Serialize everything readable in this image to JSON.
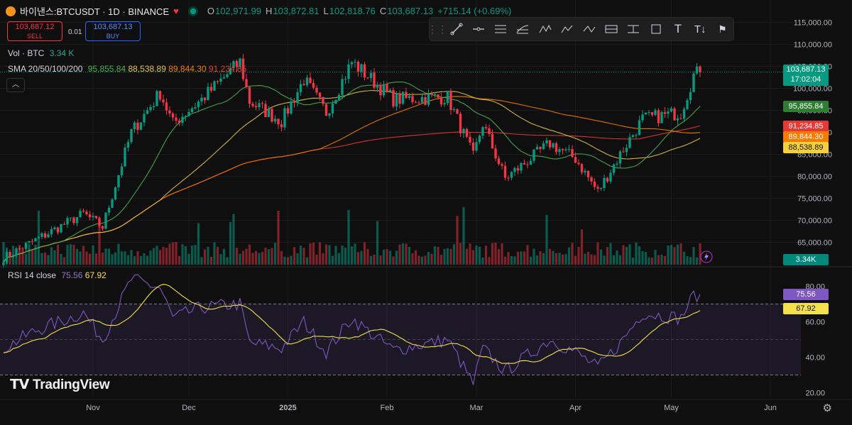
{
  "header": {
    "symbol": "바이낸스:BTCUSDT · 1D · BINANCE",
    "open_label": "O",
    "open": "102,971.99",
    "high_label": "H",
    "high": "103,872.81",
    "low_label": "L",
    "low": "102,818.76",
    "close_label": "C",
    "close": "103,687.13",
    "change": "+715.14 (+0.69%)"
  },
  "trade": {
    "sell_price": "103,687.12",
    "sell_label": "SELL",
    "spread": "0.01",
    "buy_price": "103,687.13",
    "buy_label": "BUY"
  },
  "indicators": {
    "vol_label": "Vol · BTC",
    "vol_value": "3.34 K",
    "sma_label": "SMA 20/50/100/200",
    "sma20": "95,855.84",
    "sma50": "88,538.89",
    "sma100": "89,844.30",
    "sma200": "91,234.85",
    "rsi_label": "RSI 14 close",
    "rsi_value": "75.56",
    "rsi_ma": "67.92"
  },
  "tags": {
    "price": "103,687.13",
    "countdown": "17:02:04",
    "sma20": "95,855.84",
    "sma200": "91,234.85",
    "sma100": "89,844.30",
    "sma50": "88,538.89",
    "volume": "3.34K",
    "rsi": "75.56",
    "rsi_ma": "67.92"
  },
  "brand": "TradingView",
  "colors": {
    "up": "#089981",
    "down": "#f23645",
    "sma20": "#4caf50",
    "sma50": "#e6c34d",
    "sma100": "#f57c00",
    "sma200": "#e53935",
    "rsi": "#7e57c2",
    "rsi_ma": "#f4e04d"
  },
  "chart_data": [
    {
      "type": "candlestick",
      "title": "",
      "y_ticks": [
        "115,000.00",
        "110,000.00",
        "105,000.00",
        "100,000.00",
        "95,000.00",
        "90,000.00",
        "85,000.00",
        "80,000.00",
        "75,000.00",
        "70,000.00",
        "65,000.00"
      ],
      "x_ticks": [
        "Nov",
        "Dec",
        "2025",
        "Feb",
        "Mar",
        "Apr",
        "May",
        "Jun"
      ],
      "ylim": [
        61000,
        117500
      ],
      "anchors": [
        {
          "date": "2024-10-04",
          "close": 61500
        },
        {
          "date": "2024-10-14",
          "close": 65500
        },
        {
          "date": "2024-10-29",
          "close": 71500
        },
        {
          "date": "2024-11-04",
          "close": 68500
        },
        {
          "date": "2024-11-13",
          "close": 90000
        },
        {
          "date": "2024-11-22",
          "close": 99000
        },
        {
          "date": "2024-11-26",
          "close": 92000
        },
        {
          "date": "2024-12-05",
          "close": 97500
        },
        {
          "date": "2024-12-17",
          "close": 106000
        },
        {
          "date": "2024-12-20",
          "close": 97000
        },
        {
          "date": "2024-12-30",
          "close": 92500
        },
        {
          "date": "2025-01-06",
          "close": 102000
        },
        {
          "date": "2025-01-13",
          "close": 94500
        },
        {
          "date": "2025-01-21",
          "close": 106000
        },
        {
          "date": "2025-01-28",
          "close": 101500
        },
        {
          "date": "2025-02-03",
          "close": 97500
        },
        {
          "date": "2025-02-20",
          "close": 98000
        },
        {
          "date": "2025-02-28",
          "close": 84500
        },
        {
          "date": "2025-03-03",
          "close": 92000
        },
        {
          "date": "2025-03-10",
          "close": 79500
        },
        {
          "date": "2025-03-24",
          "close": 87500
        },
        {
          "date": "2025-04-01",
          "close": 84000
        },
        {
          "date": "2025-04-08",
          "close": 76500
        },
        {
          "date": "2025-04-15",
          "close": 85000
        },
        {
          "date": "2025-04-22",
          "close": 93000
        },
        {
          "date": "2025-05-04",
          "close": 94500
        },
        {
          "date": "2025-05-08",
          "close": 103000
        },
        {
          "date": "2025-05-10",
          "close": 103687
        }
      ],
      "sma_last": {
        "sma20": 95855.84,
        "sma50": 88538.89,
        "sma100": 89844.3,
        "sma200": 91234.85
      }
    },
    {
      "type": "bar",
      "title": "Vol · BTC",
      "last_value": "3.34K"
    },
    {
      "type": "line",
      "title": "RSI 14 close",
      "y_ticks": [
        "80.00",
        "60.00",
        "40.00",
        "20.00"
      ],
      "ylim": [
        17,
        85
      ],
      "bands": [
        30,
        70
      ],
      "anchors": [
        {
          "date": "2024-10-04",
          "v": 45
        },
        {
          "date": "2024-10-14",
          "v": 55
        },
        {
          "date": "2024-10-29",
          "v": 65
        },
        {
          "date": "2024-11-04",
          "v": 50
        },
        {
          "date": "2024-11-13",
          "v": 84
        },
        {
          "date": "2024-11-22",
          "v": 79
        },
        {
          "date": "2024-11-26",
          "v": 62
        },
        {
          "date": "2024-12-05",
          "v": 68
        },
        {
          "date": "2024-12-17",
          "v": 70
        },
        {
          "date": "2024-12-20",
          "v": 48
        },
        {
          "date": "2024-12-30",
          "v": 45
        },
        {
          "date": "2025-01-06",
          "v": 60
        },
        {
          "date": "2025-01-13",
          "v": 43
        },
        {
          "date": "2025-01-21",
          "v": 62
        },
        {
          "date": "2025-01-28",
          "v": 52
        },
        {
          "date": "2025-02-03",
          "v": 44
        },
        {
          "date": "2025-02-20",
          "v": 50
        },
        {
          "date": "2025-02-28",
          "v": 25
        },
        {
          "date": "2025-03-03",
          "v": 45
        },
        {
          "date": "2025-03-10",
          "v": 32
        },
        {
          "date": "2025-03-24",
          "v": 50
        },
        {
          "date": "2025-04-01",
          "v": 43
        },
        {
          "date": "2025-04-08",
          "v": 34
        },
        {
          "date": "2025-04-15",
          "v": 48
        },
        {
          "date": "2025-04-22",
          "v": 65
        },
        {
          "date": "2025-05-04",
          "v": 62
        },
        {
          "date": "2025-05-08",
          "v": 75
        },
        {
          "date": "2025-05-10",
          "v": 75.56
        }
      ],
      "ma_last": 67.92
    }
  ]
}
